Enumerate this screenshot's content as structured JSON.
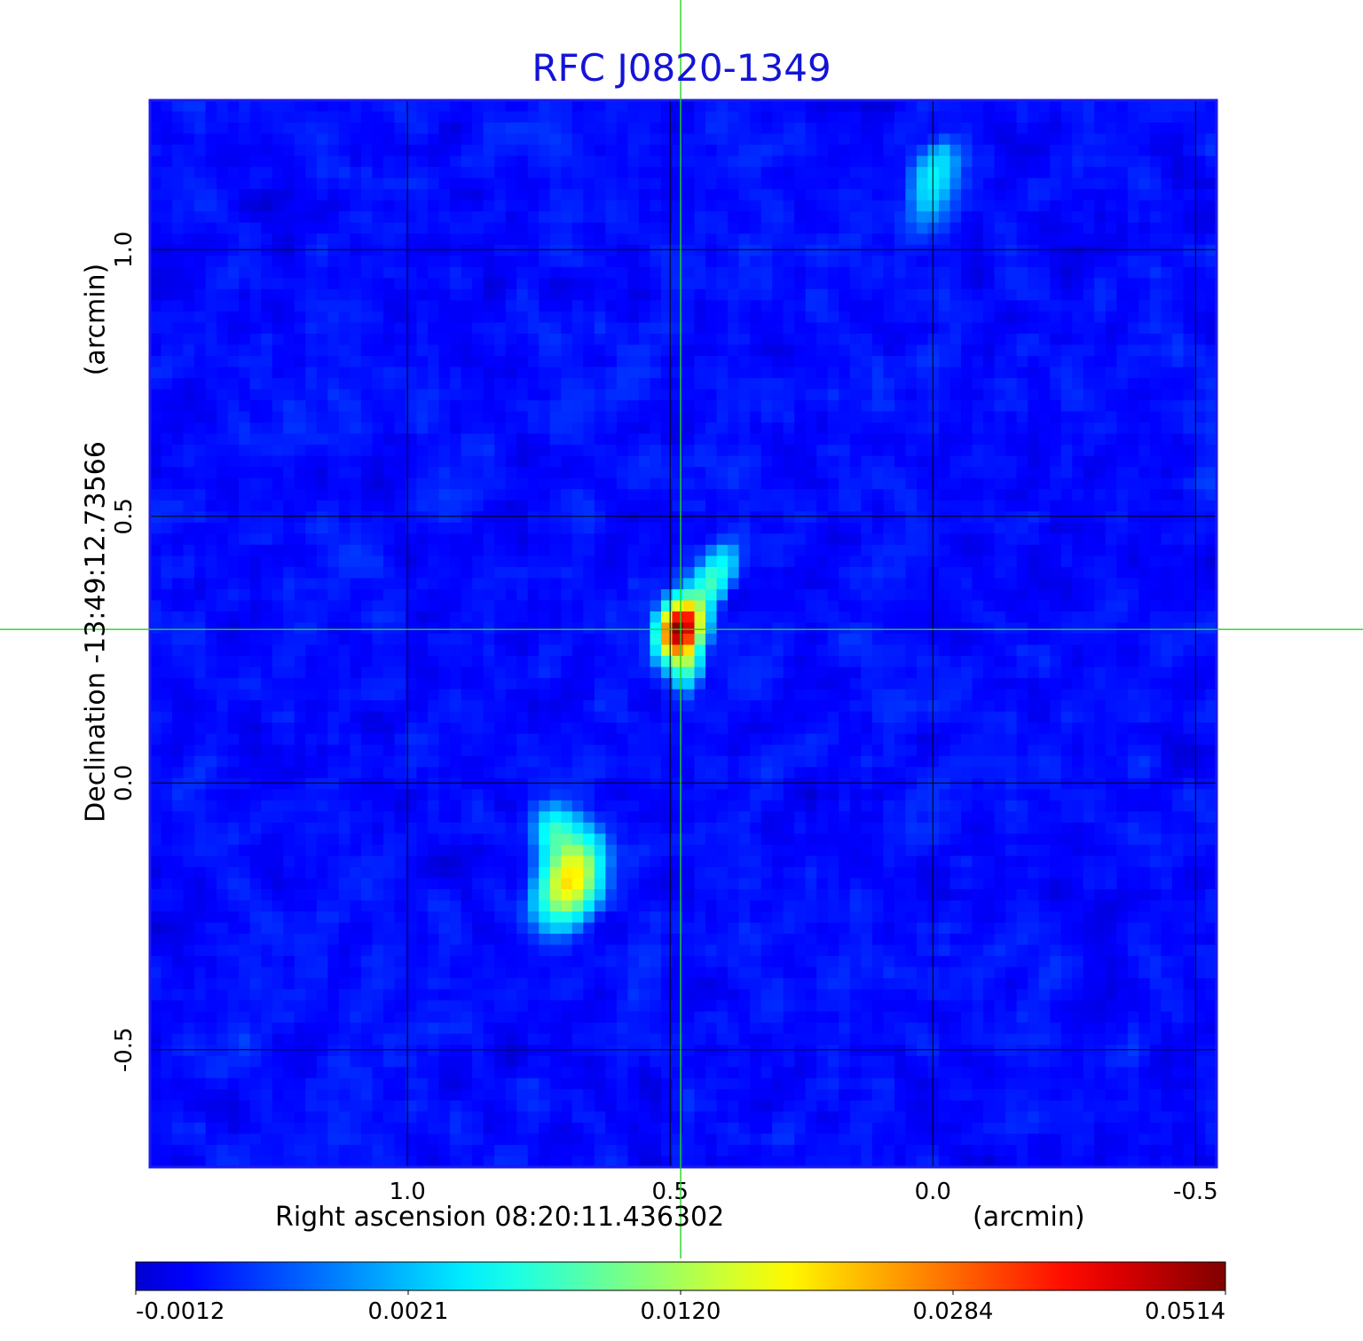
{
  "chart_data": {
    "type": "heatmap",
    "title": "RFC J0820-1349",
    "xlabel": "Right ascension  08:20:11.436302",
    "xunit": "(arcmin)",
    "ylabel": "Declination  -13:49:12.73566",
    "yunit": "(arcmin)",
    "x_axis": {
      "ticks": [
        1.0,
        0.5,
        0.0,
        -0.5
      ],
      "tick_labels": [
        "1.0",
        "0.5",
        "0.0",
        "-0.5"
      ],
      "range": [
        1.49,
        -0.54
      ],
      "reversed": true
    },
    "y_axis": {
      "ticks": [
        1.0,
        0.5,
        0.0,
        -0.5
      ],
      "tick_labels": [
        "1.0",
        "0.5",
        "0.0",
        "-0.5"
      ],
      "range": [
        -0.72,
        1.28
      ]
    },
    "grid": true,
    "crosshair": {
      "x": 0.48,
      "y": 0.288,
      "color": "#22d622"
    },
    "colorbar": {
      "colormap": "jet",
      "tick_labels": [
        "-0.0012",
        "0.0021",
        "0.0120",
        "0.0284",
        "0.0514"
      ],
      "min": -0.0012,
      "max": 0.0514,
      "placement": "bottom"
    },
    "sources": [
      {
        "x": 0.48,
        "y": 0.29,
        "peak": 0.0514,
        "sigma_x": 0.022,
        "sigma_y": 0.032,
        "angle": -20
      },
      {
        "x": 0.47,
        "y": 0.23,
        "peak": 0.01,
        "sigma_x": 0.018,
        "sigma_y": 0.03,
        "angle": 0
      },
      {
        "x": 0.42,
        "y": 0.38,
        "peak": 0.008,
        "sigma_x": 0.02,
        "sigma_y": 0.04,
        "angle": -30
      },
      {
        "x": 0.69,
        "y": -0.18,
        "peak": 0.021,
        "sigma_x": 0.032,
        "sigma_y": 0.05,
        "angle": -20
      },
      {
        "x": 0.72,
        "y": -0.09,
        "peak": 0.007,
        "sigma_x": 0.025,
        "sigma_y": 0.03,
        "angle": 0
      },
      {
        "x": 0.0,
        "y": 1.13,
        "peak": 0.005,
        "sigma_x": 0.025,
        "sigma_y": 0.05,
        "angle": -20
      }
    ],
    "colors": {
      "title": "#1414d6",
      "frame": "#1a1af0",
      "crosshair": "#22d622",
      "grid": "#000000"
    }
  }
}
